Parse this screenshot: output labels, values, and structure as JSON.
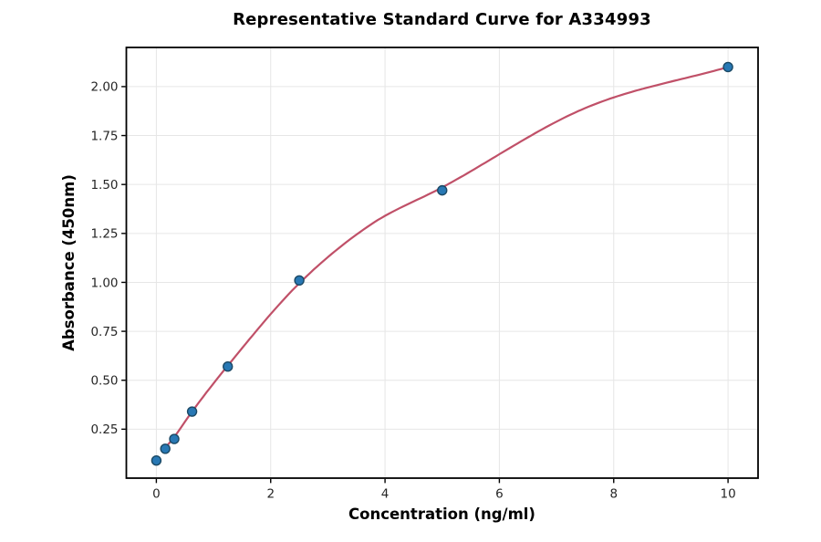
{
  "chart_data": {
    "type": "scatter",
    "title": "Representative Standard Curve for A334993",
    "xlabel": "Concentration (ng/ml)",
    "ylabel": "Absorbance (450nm)",
    "xlim": [
      -0.525,
      10.525
    ],
    "ylim": [
      0,
      2.2
    ],
    "xticks": [
      0,
      2,
      4,
      6,
      8,
      10
    ],
    "xtick_labels": [
      "0",
      "2",
      "4",
      "6",
      "8",
      "10"
    ],
    "yticks": [
      0.25,
      0.5,
      0.75,
      1.0,
      1.25,
      1.5,
      1.75,
      2.0
    ],
    "ytick_labels": [
      "0.25",
      "0.50",
      "0.75",
      "1.00",
      "1.25",
      "1.50",
      "1.75",
      "2.00"
    ],
    "grid": true,
    "legend": false,
    "series": [
      {
        "name": "standard-points",
        "type": "scatter",
        "x": [
          0,
          0.156,
          0.313,
          0.625,
          1.25,
          2.5,
          5,
          10
        ],
        "y": [
          0.09,
          0.15,
          0.2,
          0.34,
          0.57,
          1.01,
          1.47,
          2.1
        ]
      },
      {
        "name": "fit-curve",
        "type": "line",
        "x": [
          0.156,
          0.313,
          0.625,
          1.25,
          2.5,
          3.75,
          5,
          7.5,
          10
        ],
        "y": [
          0.155,
          0.21,
          0.34,
          0.575,
          0.995,
          1.295,
          1.485,
          1.89,
          2.1
        ]
      }
    ],
    "style": {
      "background": "#ffffff",
      "marker_fill": "#2878b4",
      "marker_edge": "#1b4965",
      "line_color": "#c05068",
      "grid_color": "#e6e6e6",
      "spine_color": "#000000",
      "tick_color": "#000000",
      "tick_label_color": "#262626",
      "title_color": "#000000"
    }
  }
}
